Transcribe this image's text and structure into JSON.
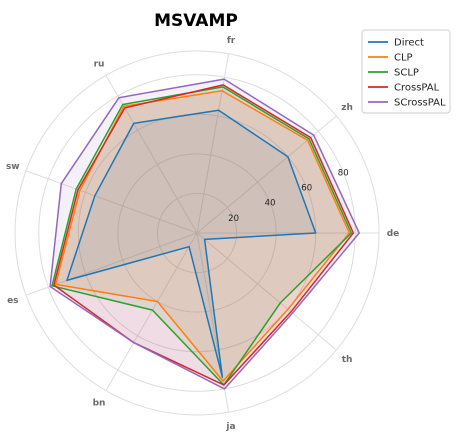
{
  "chart_data": {
    "type": "radar",
    "title": "MSVAMP",
    "axes": [
      "de",
      "zh",
      "fr",
      "ru",
      "sw",
      "es",
      "bn",
      "ja",
      "th"
    ],
    "radial_ticks": [
      20,
      40,
      60,
      80
    ],
    "rmax": 92,
    "grid": true,
    "legend": "top-right",
    "series": [
      {
        "name": "Direct",
        "color": "#1f77b4",
        "values": [
          60,
          60,
          63,
          64,
          55,
          70,
          8,
          74,
          5
        ]
      },
      {
        "name": "CLP",
        "color": "#ff7f0e",
        "values": [
          77,
          73,
          73,
          74,
          63,
          76,
          40,
          76,
          60
        ]
      },
      {
        "name": "SCLP",
        "color": "#2ca02c",
        "values": [
          78,
          74,
          75,
          75,
          65,
          78,
          45,
          78,
          55
        ]
      },
      {
        "name": "CrossPAL",
        "color": "#d62728",
        "values": [
          79,
          75,
          76,
          73,
          64,
          77,
          64,
          78,
          62
        ]
      },
      {
        "name": "SCrossPAL",
        "color": "#9467bd",
        "values": [
          82,
          77,
          79,
          79,
          73,
          79,
          64,
          80,
          63
        ]
      }
    ]
  }
}
